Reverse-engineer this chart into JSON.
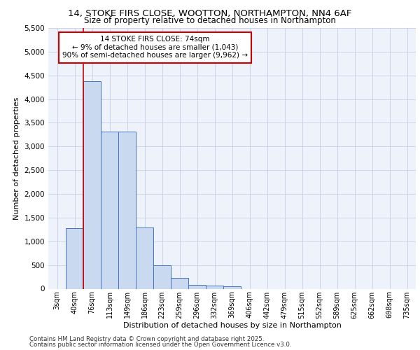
{
  "title_line1": "14, STOKE FIRS CLOSE, WOOTTON, NORTHAMPTON, NN4 6AF",
  "title_line2": "Size of property relative to detached houses in Northampton",
  "xlabel": "Distribution of detached houses by size in Northampton",
  "ylabel": "Number of detached properties",
  "bin_labels": [
    "3sqm",
    "40sqm",
    "76sqm",
    "113sqm",
    "149sqm",
    "186sqm",
    "223sqm",
    "259sqm",
    "296sqm",
    "332sqm",
    "369sqm",
    "406sqm",
    "442sqm",
    "479sqm",
    "515sqm",
    "552sqm",
    "589sqm",
    "625sqm",
    "662sqm",
    "698sqm",
    "735sqm"
  ],
  "bar_values": [
    0,
    1270,
    4380,
    3320,
    3310,
    1285,
    500,
    225,
    85,
    60,
    50,
    0,
    0,
    0,
    0,
    0,
    0,
    0,
    0,
    0,
    0
  ],
  "bar_color": "#c9d9f0",
  "bar_edge_color": "#4472c4",
  "vline_color": "#cc0000",
  "annotation_text": "14 STOKE FIRS CLOSE: 74sqm\n← 9% of detached houses are smaller (1,043)\n90% of semi-detached houses are larger (9,962) →",
  "annotation_box_color": "#cc0000",
  "ylim_max": 5500,
  "yticks": [
    0,
    500,
    1000,
    1500,
    2000,
    2500,
    3000,
    3500,
    4000,
    4500,
    5000,
    5500
  ],
  "footnote1": "Contains HM Land Registry data © Crown copyright and database right 2025.",
  "footnote2": "Contains public sector information licensed under the Open Government Licence v3.0.",
  "bg_color": "#eef2fb",
  "grid_color": "#c8d0e8",
  "fig_width": 6.0,
  "fig_height": 5.0
}
